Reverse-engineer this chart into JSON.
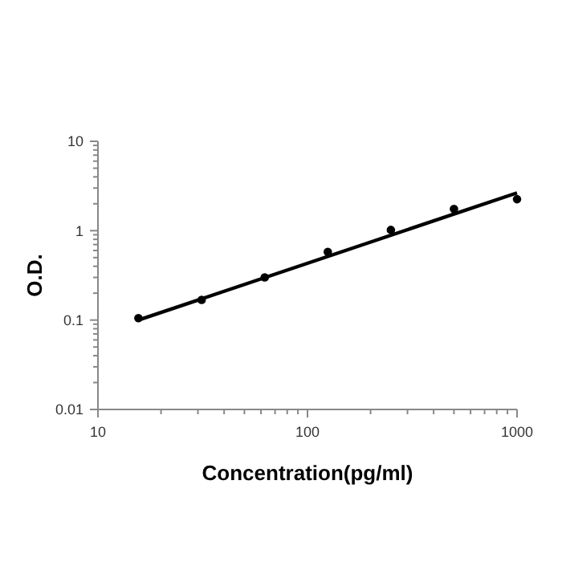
{
  "chart_data": {
    "type": "scatter",
    "xlabel": "Concentration(pg/ml)",
    "ylabel": "O.D.",
    "log": "xy",
    "grid": false,
    "marker": "circle",
    "xlim": [
      10,
      1000
    ],
    "xticks": [
      10,
      100,
      1000
    ],
    "ylim": [
      0.01,
      10
    ],
    "yticks": [
      0.01,
      0.1,
      1,
      10
    ],
    "series": [
      {
        "color": "#000000",
        "x": [
          15.6,
          31.25,
          62.5,
          125,
          250,
          500,
          1000
        ],
        "values": [
          0.105,
          0.168,
          0.3,
          0.58,
          1.02,
          1.75,
          2.25
        ]
      },
      {
        "type": "line",
        "color": "#000000",
        "marker": "none",
        "line_style": "solid",
        "x": [
          15.6,
          1000
        ],
        "values": [
          0.1,
          2.65
        ]
      }
    ]
  }
}
